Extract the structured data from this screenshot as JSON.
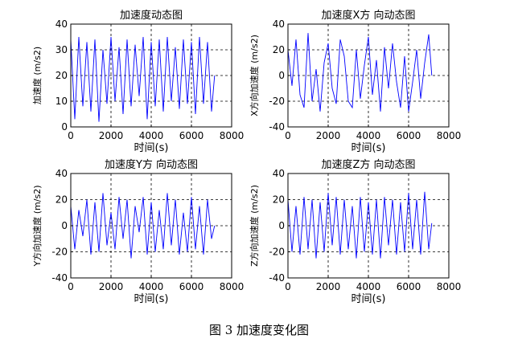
{
  "caption": "图 3  加速度变化图",
  "chart_data": [
    {
      "type": "line",
      "title": "加速度动态图",
      "xlabel": "时间(s)",
      "ylabel": "加速度 (m/s2)",
      "xlim": [
        0,
        8000
      ],
      "ylim": [
        0,
        40
      ],
      "xticks": [
        0,
        2000,
        4000,
        6000,
        8000
      ],
      "yticks": [
        0,
        10,
        20,
        30,
        40
      ],
      "grid": true,
      "line_color": "#0000ff",
      "series": [
        {
          "x": [
            0,
            200,
            400,
            600,
            800,
            1000,
            1200,
            1400,
            1600,
            1800,
            2000,
            2200,
            2400,
            2600,
            2800,
            3000,
            3200,
            3400,
            3600,
            3800,
            4000,
            4200,
            4400,
            4600,
            4800,
            5000,
            5200,
            5400,
            5600,
            5800,
            6000,
            6200,
            6400,
            6600,
            6800,
            7000,
            7150
          ],
          "values": [
            34,
            3,
            35,
            8,
            33,
            6,
            34,
            2,
            30,
            9,
            35,
            10,
            31,
            5,
            34,
            8,
            32,
            12,
            35,
            3,
            33,
            8,
            34,
            6,
            35,
            10,
            31,
            7,
            34,
            9,
            33,
            5,
            35,
            9,
            33,
            6,
            20
          ]
        }
      ]
    },
    {
      "type": "line",
      "title": "加速度X方 向动态图",
      "xlabel": "时间(s)",
      "ylabel": "X方向加速度 (m/s2)",
      "xlim": [
        0,
        8000
      ],
      "ylim": [
        -40,
        40
      ],
      "xticks": [
        0,
        2000,
        4000,
        6000,
        8000
      ],
      "yticks": [
        -40,
        -20,
        0,
        20,
        40
      ],
      "grid": true,
      "line_color": "#0000ff",
      "series": [
        {
          "x": [
            0,
            200,
            400,
            600,
            800,
            1000,
            1200,
            1400,
            1600,
            1800,
            2000,
            2200,
            2400,
            2600,
            2800,
            3000,
            3200,
            3400,
            3600,
            3800,
            4000,
            4200,
            4400,
            4600,
            4800,
            5000,
            5200,
            5400,
            5600,
            5800,
            6000,
            6200,
            6400,
            6600,
            6800,
            7000,
            7150
          ],
          "values": [
            20,
            -8,
            28,
            -15,
            -25,
            33,
            -20,
            5,
            -28,
            10,
            25,
            -10,
            -22,
            28,
            15,
            -20,
            -25,
            20,
            -18,
            8,
            30,
            -15,
            12,
            -28,
            22,
            -10,
            25,
            -5,
            -25,
            15,
            -28,
            -5,
            20,
            -18,
            10,
            32,
            0
          ]
        }
      ]
    },
    {
      "type": "line",
      "title": "加速度Y方 向动态图",
      "xlabel": "时间(s)",
      "ylabel": "Y方向加速度 (m/s2)",
      "xlim": [
        0,
        8000
      ],
      "ylim": [
        -40,
        40
      ],
      "xticks": [
        0,
        2000,
        4000,
        6000,
        8000
      ],
      "yticks": [
        -40,
        -20,
        0,
        20,
        40
      ],
      "grid": true,
      "line_color": "#0000ff",
      "series": [
        {
          "x": [
            0,
            200,
            400,
            600,
            800,
            1000,
            1200,
            1400,
            1600,
            1800,
            2000,
            2200,
            2400,
            2600,
            2800,
            3000,
            3200,
            3400,
            3600,
            3800,
            4000,
            4200,
            4400,
            4600,
            4800,
            5000,
            5200,
            5400,
            5600,
            5800,
            6000,
            6200,
            6400,
            6600,
            6800,
            7000,
            7150
          ],
          "values": [
            15,
            -18,
            12,
            -8,
            20,
            -22,
            18,
            -20,
            25,
            -15,
            10,
            -18,
            22,
            -10,
            20,
            -25,
            15,
            -5,
            22,
            -22,
            18,
            -20,
            12,
            -18,
            25,
            -15,
            20,
            -22,
            10,
            -20,
            22,
            -18,
            15,
            -22,
            20,
            -10,
            0
          ]
        }
      ]
    },
    {
      "type": "line",
      "title": "加速度Z方 向动态图",
      "xlabel": "时间(s)",
      "ylabel": "Z方向加速度 (m/s2)",
      "xlim": [
        0,
        8000
      ],
      "ylim": [
        -40,
        40
      ],
      "xticks": [
        0,
        2000,
        4000,
        6000,
        8000
      ],
      "yticks": [
        -40,
        -20,
        0,
        20,
        40
      ],
      "grid": true,
      "line_color": "#0000ff",
      "series": [
        {
          "x": [
            0,
            200,
            400,
            600,
            800,
            1000,
            1200,
            1400,
            1600,
            1800,
            2000,
            2200,
            2400,
            2600,
            2800,
            3000,
            3200,
            3400,
            3600,
            3800,
            4000,
            4200,
            4400,
            4600,
            4800,
            5000,
            5200,
            5400,
            5600,
            5800,
            6000,
            6200,
            6400,
            6600,
            6800,
            7000,
            7150
          ],
          "values": [
            20,
            -20,
            15,
            -22,
            22,
            -18,
            20,
            -25,
            18,
            -20,
            25,
            -15,
            22,
            -22,
            20,
            -18,
            15,
            -25,
            22,
            -20,
            18,
            -22,
            20,
            -25,
            22,
            -15,
            20,
            -22,
            18,
            -20,
            25,
            -18,
            20,
            -22,
            26,
            -18,
            2
          ]
        }
      ]
    }
  ]
}
